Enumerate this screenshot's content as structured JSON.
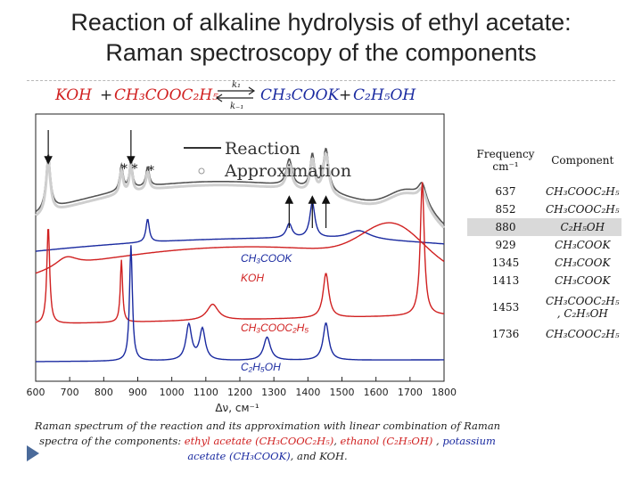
{
  "slide": {
    "title_line1": "Reaction of alkaline hydrolysis of ethyl acetate:",
    "title_line2": "Raman spectroscopy of the components"
  },
  "equation": {
    "koh": "KOH",
    "plus1": "+",
    "ch3cooc2h5": "CH₃COOC₂H₅",
    "k1": "k₁",
    "k_minus1": "k₋₁",
    "ch3cook": "CH₃COOK",
    "plus2": "+",
    "c2h5oh": "C₂H₅OH",
    "color_left": "#d02020",
    "color_right": "#1a2aa0"
  },
  "chart_data": {
    "type": "line",
    "xlabel": "Δν, см⁻¹",
    "xlim": [
      600,
      1800
    ],
    "x_ticks": [
      600,
      700,
      800,
      900,
      1000,
      1100,
      1200,
      1300,
      1400,
      1500,
      1600,
      1700,
      1800
    ],
    "legend": {
      "reaction": "Reaction",
      "approximation": "Approximation",
      "placement": "top-center"
    },
    "trace_labels": {
      "ch3cook": "CH₃COOK",
      "koh": "KOH",
      "ch3cooc2h5": "CH₃COOC₂H₅",
      "c2h5oh": "C₂H₅OH"
    },
    "markers": {
      "double_star": "* *",
      "star": "*"
    },
    "arrow_positions_cm": [
      637,
      880,
      1345,
      1413,
      1453
    ],
    "series": [
      {
        "name": "Reaction",
        "color": "#555555"
      },
      {
        "name": "Approximation",
        "color": "#d0d0d0"
      },
      {
        "name": "CH₃COOK",
        "color": "#1a2aa0"
      },
      {
        "name": "KOH",
        "color": "#d02020"
      },
      {
        "name": "CH₃COOC₂H₅",
        "color": "#d02020"
      },
      {
        "name": "C₂H₅OH",
        "color": "#1a2aa0"
      }
    ]
  },
  "freq_table": {
    "header_freq": "Frequency cm⁻¹",
    "header_comp": "Component",
    "rows": [
      {
        "freq": "637",
        "comp": "CH₃COOC₂H₅"
      },
      {
        "freq": "852",
        "comp": "CH₃COOC₂H₅"
      },
      {
        "freq": "880",
        "comp": "C₂H₅OH"
      },
      {
        "freq": "929",
        "comp": "CH₃COOK"
      },
      {
        "freq": "1345",
        "comp": "CH₃COOK"
      },
      {
        "freq": "1413",
        "comp": "CH₃COOK"
      },
      {
        "freq": "1453",
        "comp": "CH₃COOC₂H₅ , C₂H₅OH"
      },
      {
        "freq": "1736",
        "comp": "CH₃COOC₂H₅"
      }
    ]
  },
  "caption": {
    "part1": "Raman spectrum of the reaction and its approximation with linear combination of Raman spectra of the components: ",
    "ethyl_acetate": "ethyl acetate (CH₃COOC₂H₅)",
    "sep1": ", ",
    "ethanol": "ethanol (C₂H₅OH)",
    "sep2": " , ",
    "potassium_acetate": "potassium acetate (CH₃COOK)",
    "part_end": ", and KOH."
  }
}
